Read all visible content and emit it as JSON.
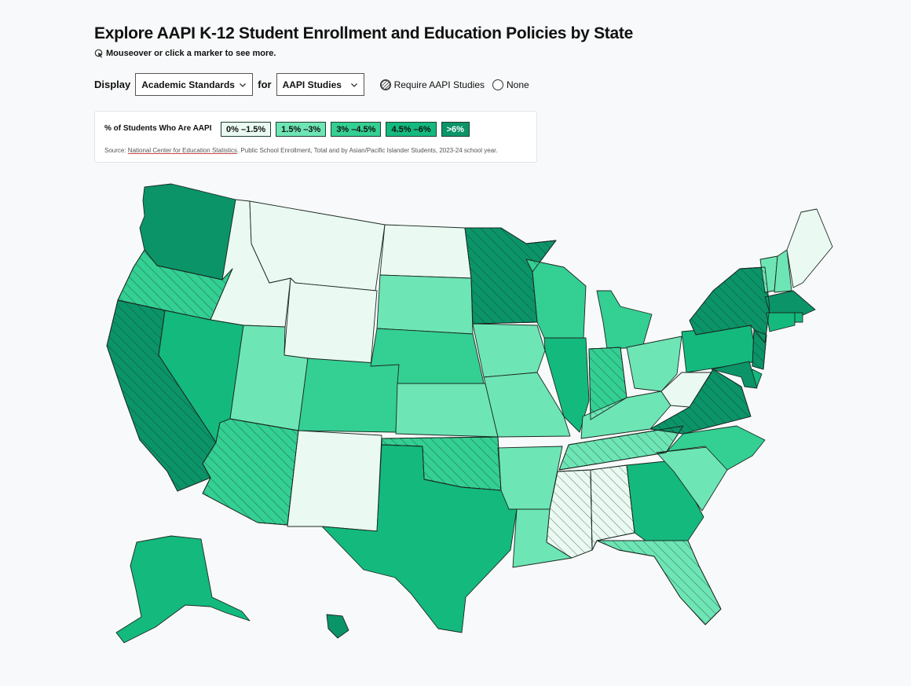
{
  "title": "Explore AAPI K-12 Student Enrollment and Education Policies by State",
  "hint": "Mouseover or click a marker to see more.",
  "controls": {
    "display_label": "Display",
    "display_value": "Academic Standards",
    "for_label": "for",
    "for_value": "AAPI Studies",
    "radio_require": "Require AAPI Studies",
    "radio_none": "None"
  },
  "legend": {
    "label": "% of Students Who Are AAPI",
    "bins": [
      {
        "label": "0% –1.5%",
        "color": "#eafaf2",
        "text": "#111"
      },
      {
        "label": "1.5% –3%",
        "color": "#6ee5b5",
        "text": "#111"
      },
      {
        "label": "3% –4.5%",
        "color": "#34cf93",
        "text": "#111"
      },
      {
        "label": "4.5% –6%",
        "color": "#14b97e",
        "text": "#111"
      },
      {
        "label": ">6%",
        "color": "#0b9468",
        "text": "#fff"
      }
    ],
    "source_prefix": "Source: ",
    "source_link": "National Center for Education Statistics",
    "source_rest": ". Public School Enrollment, Total and by Asian/Pacific Islander Students, 2023-24 school year."
  },
  "map_data": {
    "states": [
      {
        "id": "WA",
        "bin": 4,
        "hatched": false
      },
      {
        "id": "OR",
        "bin": 2,
        "hatched": true
      },
      {
        "id": "CA",
        "bin": 4,
        "hatched": true
      },
      {
        "id": "ID",
        "bin": 0,
        "hatched": false
      },
      {
        "id": "NV",
        "bin": 3,
        "hatched": false
      },
      {
        "id": "MT",
        "bin": 0,
        "hatched": false
      },
      {
        "id": "WY",
        "bin": 0,
        "hatched": false
      },
      {
        "id": "UT",
        "bin": 1,
        "hatched": false
      },
      {
        "id": "AZ",
        "bin": 2,
        "hatched": true
      },
      {
        "id": "CO",
        "bin": 2,
        "hatched": false
      },
      {
        "id": "NM",
        "bin": 0,
        "hatched": false
      },
      {
        "id": "ND",
        "bin": 0,
        "hatched": false
      },
      {
        "id": "SD",
        "bin": 1,
        "hatched": false
      },
      {
        "id": "NE",
        "bin": 2,
        "hatched": false
      },
      {
        "id": "KS",
        "bin": 1,
        "hatched": false
      },
      {
        "id": "OK",
        "bin": 2,
        "hatched": true
      },
      {
        "id": "TX",
        "bin": 3,
        "hatched": false
      },
      {
        "id": "MN",
        "bin": 4,
        "hatched": true
      },
      {
        "id": "IA",
        "bin": 1,
        "hatched": false
      },
      {
        "id": "MO",
        "bin": 1,
        "hatched": false
      },
      {
        "id": "AR",
        "bin": 1,
        "hatched": false
      },
      {
        "id": "LA",
        "bin": 1,
        "hatched": false
      },
      {
        "id": "WI",
        "bin": 2,
        "hatched": false
      },
      {
        "id": "IL",
        "bin": 3,
        "hatched": false
      },
      {
        "id": "MI",
        "bin": 2,
        "hatched": false
      },
      {
        "id": "IN",
        "bin": 2,
        "hatched": true
      },
      {
        "id": "OH",
        "bin": 1,
        "hatched": false
      },
      {
        "id": "KY",
        "bin": 1,
        "hatched": false
      },
      {
        "id": "TN",
        "bin": 1,
        "hatched": true
      },
      {
        "id": "MS",
        "bin": 0,
        "hatched": true
      },
      {
        "id": "AL",
        "bin": 0,
        "hatched": true
      },
      {
        "id": "GA",
        "bin": 3,
        "hatched": false
      },
      {
        "id": "FL",
        "bin": 1,
        "hatched": true
      },
      {
        "id": "SC",
        "bin": 1,
        "hatched": false
      },
      {
        "id": "NC",
        "bin": 2,
        "hatched": false
      },
      {
        "id": "VA",
        "bin": 4,
        "hatched": true
      },
      {
        "id": "WV",
        "bin": 0,
        "hatched": false
      },
      {
        "id": "PA",
        "bin": 3,
        "hatched": false
      },
      {
        "id": "NY",
        "bin": 4,
        "hatched": true
      },
      {
        "id": "VT",
        "bin": 1,
        "hatched": false
      },
      {
        "id": "NH",
        "bin": 1,
        "hatched": false
      },
      {
        "id": "ME",
        "bin": 0,
        "hatched": false
      },
      {
        "id": "MA",
        "bin": 4,
        "hatched": false
      },
      {
        "id": "RI",
        "bin": 3,
        "hatched": false
      },
      {
        "id": "CT",
        "bin": 3,
        "hatched": false
      },
      {
        "id": "NJ",
        "bin": 4,
        "hatched": true
      },
      {
        "id": "DE",
        "bin": 3,
        "hatched": false
      },
      {
        "id": "MD",
        "bin": 4,
        "hatched": false
      },
      {
        "id": "AK",
        "bin": 3,
        "hatched": false
      },
      {
        "id": "HI",
        "bin": 4,
        "hatched": false
      }
    ]
  }
}
